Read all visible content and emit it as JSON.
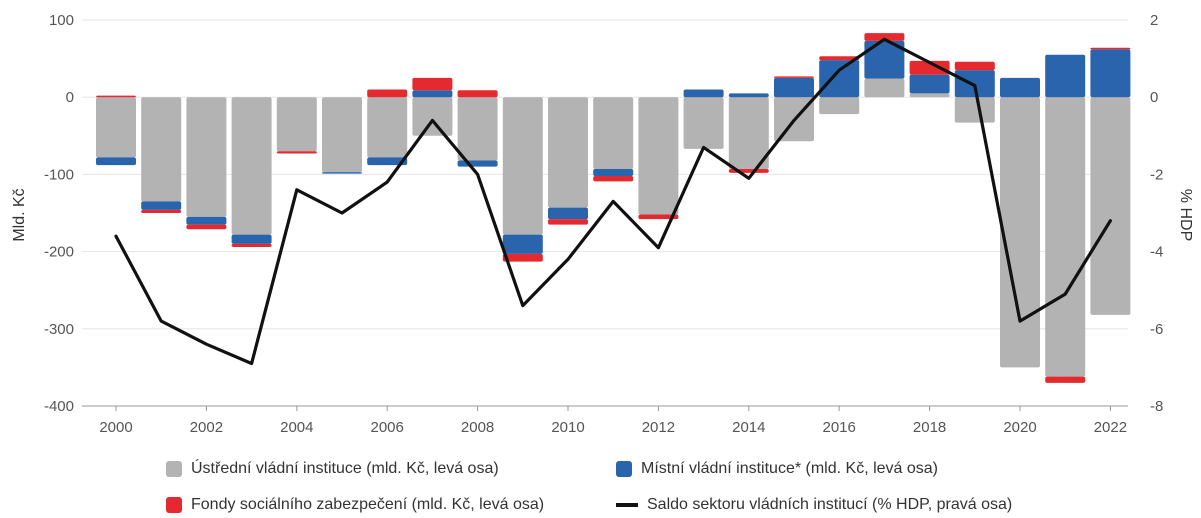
{
  "chart_data": {
    "type": "bar",
    "stacked": true,
    "x": [
      "2000",
      "2001",
      "2002",
      "2003",
      "2004",
      "2005",
      "2006",
      "2007",
      "2008",
      "2009",
      "2010",
      "2011",
      "2012",
      "2013",
      "2014",
      "2015",
      "2016",
      "2017",
      "2018",
      "2019",
      "2020",
      "2021",
      "2022"
    ],
    "xtick_labels": [
      "2000",
      "2002",
      "2004",
      "2006",
      "2008",
      "2010",
      "2012",
      "2014",
      "2016",
      "2018",
      "2020",
      "2022"
    ],
    "ylabel": "Mld. Kč",
    "ylabel_right": "% HDP",
    "ylim": [
      -400,
      100
    ],
    "yticks": [
      "100",
      "0",
      "-100",
      "-200",
      "-300",
      "-400"
    ],
    "ylim_right": [
      -8,
      2
    ],
    "yticks_right": [
      "2",
      "0",
      "-2",
      "-4",
      "-6",
      "-8"
    ],
    "grid": true,
    "series": [
      {
        "name": "Ústřední vládní instituce (mld. Kč, levá osa)",
        "color": "#b3b3b3",
        "axis": "left",
        "values": [
          -78,
          -135,
          -155,
          -178,
          -70,
          -97,
          -78,
          -50,
          -82,
          -178,
          -143,
          -93,
          -152,
          -67,
          -93,
          -57,
          -22,
          24,
          5,
          -33,
          -350,
          -362,
          -282
        ]
      },
      {
        "name": "Místní vládní instituce* (mld. Kč, levá osa)",
        "color": "#2a64ad",
        "axis": "left",
        "values": [
          -10,
          -11,
          -10,
          -12,
          0,
          -2,
          -10,
          9,
          -8,
          -25,
          -15,
          -9,
          0,
          10,
          5,
          25,
          48,
          49,
          24,
          35,
          25,
          55,
          62
        ]
      },
      {
        "name": "Fondy sociálního zabezpečení (mld. Kč, levá osa)",
        "color": "#e52a2f",
        "axis": "left",
        "values": [
          2,
          -4,
          -6,
          -4,
          -3,
          0,
          10,
          16,
          9,
          -10,
          -7,
          -7,
          -6,
          0,
          -5,
          2,
          5,
          10,
          18,
          11,
          0,
          -8,
          2
        ]
      },
      {
        "name": "Saldo sektoru vládních institucí (% HDP, pravá osa)",
        "color": "#111111",
        "axis": "right",
        "type": "line",
        "values": [
          -3.6,
          -5.8,
          -6.4,
          -6.9,
          -2.4,
          -3.0,
          -2.2,
          -0.6,
          -2.0,
          -5.4,
          -4.2,
          -2.7,
          -3.9,
          -1.3,
          -2.1,
          -0.6,
          0.7,
          1.5,
          0.9,
          0.3,
          -5.8,
          -5.1,
          -3.2
        ]
      }
    ],
    "legend_position": "bottom"
  },
  "legend": {
    "items": [
      {
        "label": "Ústřední vládní instituce (mld. Kč, levá osa)",
        "kind": "box",
        "color": "#b3b3b3"
      },
      {
        "label": "Místní vládní instituce* (mld. Kč, levá osa)",
        "kind": "box",
        "color": "#2a64ad"
      },
      {
        "label": "Fondy sociálního zabezpečení (mld. Kč, levá osa)",
        "kind": "box",
        "color": "#e52a2f"
      },
      {
        "label": "Saldo sektoru vládních institucí (% HDP, pravá osa)",
        "kind": "line",
        "color": "#111111"
      }
    ]
  }
}
